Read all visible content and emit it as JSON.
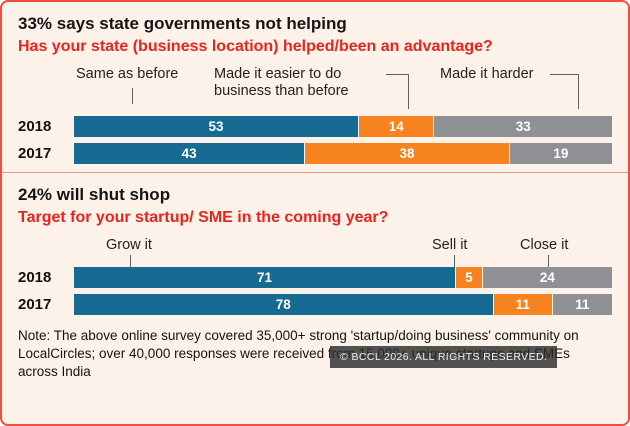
{
  "colors": {
    "blue": "#176b93",
    "orange": "#f6831f",
    "gray": "#8f9194",
    "accent_red": "#e8251c",
    "border_red": "#f04e3e",
    "background": "#fcf2e9",
    "watermark_bg": "#2d2d2d"
  },
  "chart_data": [
    {
      "type": "bar",
      "orientation": "horizontal",
      "stacked": true,
      "title": "33% says state governments not helping",
      "subtitle": "Has your state (business location) helped/been an advantage?",
      "categories": [
        "2018",
        "2017"
      ],
      "xlim": [
        0,
        100
      ],
      "series": [
        {
          "name": "Same as before",
          "values": [
            53,
            43
          ],
          "color": "#176b93"
        },
        {
          "name": "Made it easier to do business than before",
          "values": [
            14,
            38
          ],
          "color": "#f6831f"
        },
        {
          "name": "Made it harder",
          "values": [
            33,
            19
          ],
          "color": "#8f9194"
        }
      ]
    },
    {
      "type": "bar",
      "orientation": "horizontal",
      "stacked": true,
      "title": "24% will shut shop",
      "subtitle": "Target for your startup/ SME in the coming year?",
      "categories": [
        "2018",
        "2017"
      ],
      "xlim": [
        0,
        100
      ],
      "series": [
        {
          "name": "Grow it",
          "values": [
            71,
            78
          ],
          "color": "#176b93"
        },
        {
          "name": "Sell it",
          "values": [
            5,
            11
          ],
          "color": "#f6831f"
        },
        {
          "name": "Close it",
          "values": [
            24,
            11
          ],
          "color": "#8f9194"
        }
      ]
    }
  ],
  "note": "Note: The above online survey covered 35,000+ strong 'startup/doing business' community on LocalCircles; over 40,000 responses were received from 15,000+ unique startups and SMEs across India",
  "watermark": "© BCCL 2026. ALL RIGHTS RESERVED."
}
